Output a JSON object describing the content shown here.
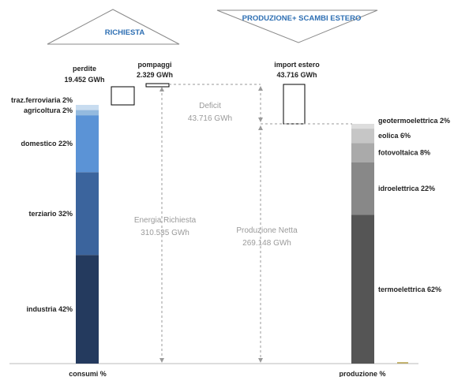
{
  "headers": {
    "richiesta": "RICHIESTA",
    "produzione": "PRODUZIONE+ SCAMBI ESTERO"
  },
  "annotations": {
    "perdite_label": "perdite",
    "perdite_value": "19.452 GWh",
    "pompaggi_label": "pompaggi",
    "pompaggi_value": "2.329 GWh",
    "import_label": "import estero",
    "import_value": "43.716 GWh",
    "deficit_label": "Deficit",
    "deficit_value": "43.716 GWh",
    "energia_label": "Energia Richiesta",
    "energia_value": "310.535 GWh",
    "produzione_label": "Produzione Netta",
    "produzione_value": "269.148 GWh"
  },
  "axis_labels": {
    "consumi": "consumi %",
    "produzione": "produzione %"
  },
  "colors": {
    "header_stroke": "#8a8a8a",
    "header_text": "#2e6fb3",
    "dash_line": "#9a9a9a"
  },
  "chart_data": {
    "type": "bar",
    "title": "",
    "totals_gwh": {
      "energia_richiesta": 310535,
      "produzione_netta": 269148,
      "deficit": 43716,
      "import_estero": 43716,
      "perdite": 19452,
      "pompaggi": 2329
    },
    "series": [
      {
        "name": "consumi %",
        "segments": [
          {
            "label": "industria 42%",
            "value": 42,
            "color": "#243a5e"
          },
          {
            "label": "terziario 32%",
            "value": 32,
            "color": "#3b649d"
          },
          {
            "label": "domestico 22%",
            "value": 22,
            "color": "#5b93d6"
          },
          {
            "label": "agricoltura 2%",
            "value": 2,
            "color": "#94badf"
          },
          {
            "label": "traz.ferroviaria 2%",
            "value": 2,
            "color": "#c8dcf0"
          }
        ]
      },
      {
        "name": "produzione %",
        "segments": [
          {
            "label": "termoelettrica 62%",
            "value": 62,
            "color": "#555555"
          },
          {
            "label": "idroelettrica 22%",
            "value": 22,
            "color": "#888888"
          },
          {
            "label": "fotovoltaica 8%",
            "value": 8,
            "color": "#aaaaaa"
          },
          {
            "label": "eolica 6%",
            "value": 6,
            "color": "#c6c6c6"
          },
          {
            "label": "geotermoelettrica 2%",
            "value": 2,
            "color": "#dddddd"
          }
        ]
      }
    ]
  }
}
